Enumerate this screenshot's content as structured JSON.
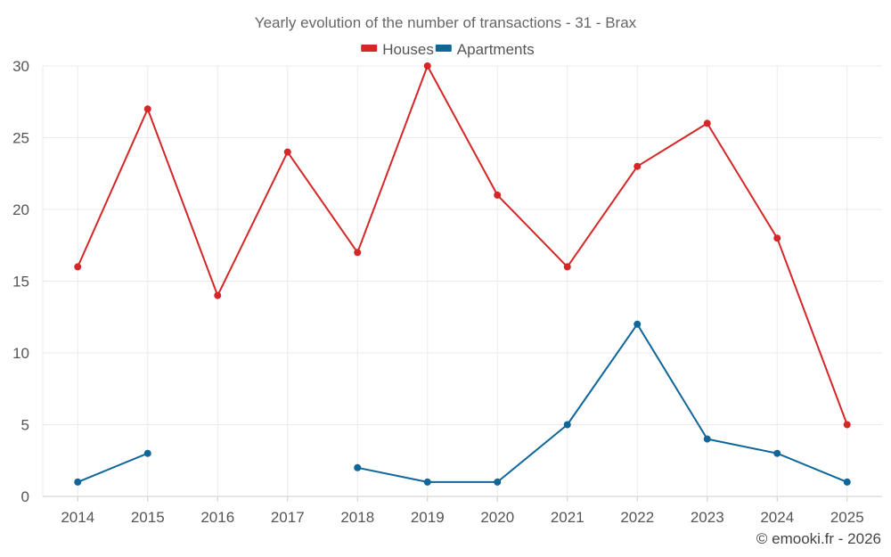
{
  "chart_data": {
    "type": "line",
    "title": "Yearly evolution of the number of transactions - 31 - Brax",
    "categories": [
      "2014",
      "2015",
      "2016",
      "2017",
      "2018",
      "2019",
      "2020",
      "2021",
      "2022",
      "2023",
      "2024",
      "2025"
    ],
    "series": [
      {
        "name": "Houses",
        "color": "#d62728",
        "values": [
          16,
          27,
          14,
          24,
          17,
          30,
          21,
          16,
          23,
          26,
          18,
          5
        ]
      },
      {
        "name": "Apartments",
        "color": "#0e6699",
        "values": [
          1,
          3,
          null,
          null,
          2,
          1,
          1,
          5,
          12,
          4,
          3,
          1
        ]
      }
    ],
    "ylim": [
      0,
      30
    ],
    "yticks": [
      0,
      5,
      10,
      15,
      20,
      25,
      30
    ],
    "legend": "top-center",
    "grid": true
  },
  "footer": {
    "copyright": "© emooki.fr - 2026"
  }
}
